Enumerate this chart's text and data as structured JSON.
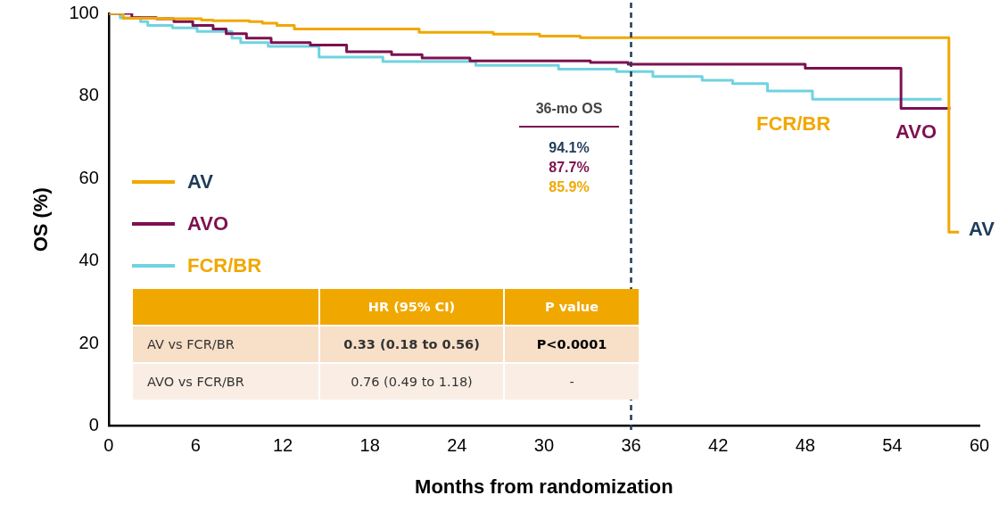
{
  "chart_data": {
    "type": "step",
    "xlabel": "Months from randomization",
    "ylabel": "OS (%)",
    "xlim": [
      0,
      60
    ],
    "xticks": [
      0,
      6,
      12,
      18,
      24,
      30,
      36,
      42,
      48,
      54,
      60
    ],
    "ylim": [
      0,
      100
    ],
    "yticks": [
      0,
      20,
      40,
      60,
      80,
      100
    ],
    "grid": false,
    "legend": "left",
    "series": [
      {
        "name": "AV",
        "color": "#f0a800",
        "x": [
          0,
          1,
          3.7,
          6.4,
          7.2,
          9.7,
          10.6,
          11.6,
          12.8,
          21.4,
          26.5,
          29.7,
          32.5,
          57.9,
          58.6
        ],
        "values": [
          100,
          98.8,
          98.7,
          98.4,
          98.2,
          98,
          97.6,
          97.1,
          96.2,
          95.4,
          95,
          94.5,
          94.1,
          47,
          47
        ]
      },
      {
        "name": "AVO",
        "color": "#7d1150",
        "x": [
          0,
          1.6,
          3.3,
          4.5,
          5.8,
          7.2,
          8.1,
          9.5,
          11.2,
          13.9,
          16.4,
          19.5,
          21.6,
          24.9,
          33.2,
          35.8,
          48,
          54.6,
          58
        ],
        "values": [
          100,
          99,
          98.7,
          98,
          97.1,
          96.2,
          95.1,
          94,
          92.9,
          92.3,
          90.7,
          90,
          89.2,
          88.5,
          88.1,
          87.7,
          86.7,
          77,
          77
        ]
      },
      {
        "name": "FCR/BR",
        "color": "#6fd3e0",
        "x": [
          0,
          0.8,
          2.2,
          2.7,
          4.4,
          6.1,
          8.5,
          9.1,
          11,
          14.5,
          18.9,
          25.3,
          31,
          35,
          37.5,
          40.9,
          43,
          45.4,
          48.5,
          57.4
        ],
        "values": [
          100,
          98.9,
          98,
          97.1,
          96.5,
          95.6,
          94,
          92.9,
          92,
          89.4,
          88.3,
          87.4,
          86.5,
          85.9,
          84.7,
          83.8,
          83,
          81.2,
          79.2,
          79.2
        ]
      }
    ],
    "ref_lines": [
      {
        "axis": "x",
        "value": 36,
        "label": null,
        "color": "#1f3b5a",
        "line_style": "dashed"
      }
    ],
    "annotations": [
      "36-mo OS",
      "94.1%",
      "87.7%",
      "85.9%",
      "FCR/BR",
      "AVO",
      "AV",
      "HR (95% CI)",
      "P value",
      "AV vs FCR/BR",
      "0.33 (0.18 to 0.56)",
      "P<0.0001",
      "AVO vs FCR/BR",
      "0.76 (0.49 to 1.18)",
      "-"
    ]
  }
}
